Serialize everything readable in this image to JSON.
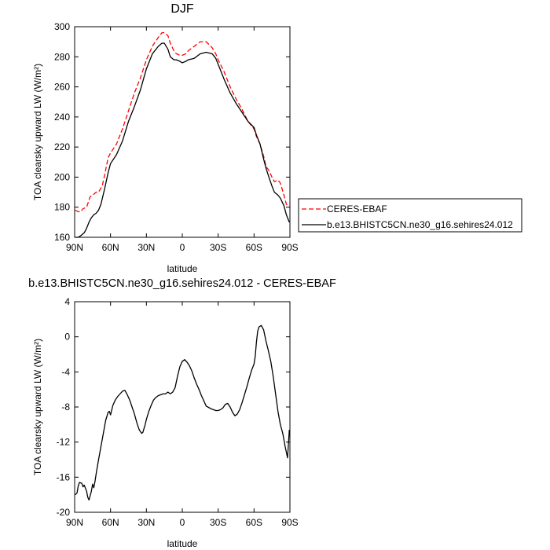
{
  "chart_data": [
    {
      "type": "line",
      "title": "DJF",
      "xlabel": "latitude",
      "ylabel": "TOA clearsky upward LW (W/m²)",
      "xlim": [
        -90,
        90
      ],
      "ylim": [
        160,
        300
      ],
      "x_ticks": [
        -90,
        -60,
        -30,
        0,
        30,
        60,
        90
      ],
      "x_tick_labels": [
        "90N",
        "60N",
        "30N",
        "0",
        "30S",
        "60S",
        "90S"
      ],
      "y_ticks": [
        160,
        180,
        200,
        220,
        240,
        260,
        280,
        300
      ],
      "y_tick_labels": [
        "160",
        "180",
        "200",
        "220",
        "240",
        "260",
        "280",
        "300"
      ],
      "series": [
        {
          "name": "CERES-EBAF",
          "color": "#ff0000",
          "dash": "dashed",
          "x": [
            -89.5,
            -87,
            -85,
            -83,
            -80,
            -77,
            -75,
            -72,
            -70,
            -67,
            -65,
            -62,
            -60,
            -55,
            -50,
            -45,
            -40,
            -35,
            -30,
            -25,
            -20,
            -17,
            -15,
            -12,
            -10,
            -7,
            -5,
            -2,
            0,
            3,
            5,
            10,
            15,
            20,
            25,
            28,
            30,
            35,
            40,
            45,
            50,
            55,
            60,
            62,
            65,
            68,
            70,
            72,
            75,
            77,
            80,
            82,
            85,
            87,
            89.5
          ],
          "y": [
            178,
            177,
            177,
            179,
            180,
            187,
            188,
            190,
            190,
            194,
            201,
            213,
            216,
            222,
            232,
            244,
            256,
            266,
            278,
            287,
            293,
            296,
            296,
            294,
            289,
            284,
            282,
            281,
            281,
            282,
            284,
            287,
            290,
            290,
            286,
            282,
            278,
            270,
            260,
            252,
            245,
            237,
            232,
            227,
            222,
            214,
            207,
            205,
            200,
            197,
            198,
            196,
            188,
            182,
            180
          ]
        },
        {
          "name": "b.e13.BHISTC5CN.ne30_g16.sehires24.012",
          "color": "#000000",
          "dash": "solid",
          "x": [
            -89.5,
            -87,
            -85,
            -82,
            -80,
            -78,
            -76,
            -74,
            -72,
            -70,
            -68,
            -65,
            -62,
            -60,
            -55,
            -50,
            -45,
            -40,
            -35,
            -30,
            -25,
            -20,
            -17,
            -15,
            -12,
            -10,
            -7,
            -5,
            -2,
            0,
            3,
            5,
            10,
            15,
            20,
            25,
            28,
            30,
            35,
            40,
            45,
            50,
            55,
            60,
            62,
            65,
            68,
            70,
            72,
            75,
            77,
            80,
            82,
            85,
            87,
            89.5
          ],
          "y": [
            160,
            160,
            161,
            163,
            166,
            170,
            173,
            175,
            176,
            178,
            182,
            192,
            203,
            209,
            215,
            224,
            237,
            247,
            258,
            272,
            282,
            287,
            289,
            289,
            285,
            280,
            278,
            278,
            277,
            276,
            277,
            278,
            279,
            282,
            283,
            282,
            279,
            275,
            265,
            256,
            249,
            243,
            237,
            233,
            228,
            222,
            212,
            206,
            201,
            194,
            190,
            188,
            186,
            181,
            175,
            170
          ]
        }
      ],
      "legend": "right"
    },
    {
      "type": "line",
      "title": "b.e13.BHISTC5CN.ne30_g16.sehires24.012 - CERES-EBAF",
      "xlabel": "latitude",
      "ylabel": "TOA clearsky upward LW (W/m²)",
      "xlim": [
        -90,
        90
      ],
      "ylim": [
        -20,
        4
      ],
      "x_ticks": [
        -90,
        -60,
        -30,
        0,
        30,
        60,
        90
      ],
      "x_tick_labels": [
        "90N",
        "60N",
        "30N",
        "0",
        "30S",
        "60S",
        "90S"
      ],
      "y_ticks": [
        -20,
        -16,
        -12,
        -8,
        -4,
        0,
        4
      ],
      "y_tick_labels": [
        "-20",
        "-16",
        "-12",
        "-8",
        "-4",
        "0",
        "4"
      ],
      "series": [
        {
          "color": "#000000",
          "dash": "solid",
          "x": [
            -89.5,
            -88,
            -87,
            -86,
            -84,
            -83,
            -82,
            -80,
            -79,
            -78,
            -76,
            -75,
            -74,
            -73,
            -72,
            -70,
            -68,
            -66,
            -64,
            -62,
            -61,
            -60,
            -58,
            -56,
            -54,
            -52,
            -50,
            -48,
            -46,
            -44,
            -42,
            -40,
            -38,
            -36,
            -34,
            -33,
            -31,
            -30,
            -28,
            -26,
            -24,
            -22,
            -20,
            -18,
            -16,
            -14,
            -12,
            -10,
            -8,
            -6,
            -4,
            -2,
            0,
            2,
            4,
            6,
            8,
            10,
            12,
            14,
            16,
            18,
            20,
            24,
            26,
            28,
            30,
            32,
            34,
            36,
            38,
            40,
            42,
            44,
            46,
            48,
            50,
            52,
            54,
            56,
            58,
            60,
            61,
            62,
            63,
            64,
            65,
            66,
            68,
            70,
            72,
            74,
            76,
            78,
            80,
            82,
            84,
            86,
            88,
            89.5
          ],
          "y": [
            -18.0,
            -17.8,
            -17.0,
            -16.6,
            -16.7,
            -17.1,
            -16.9,
            -17.6,
            -18.3,
            -18.6,
            -17.6,
            -16.8,
            -17.2,
            -16.5,
            -15.6,
            -14.0,
            -12.5,
            -11.0,
            -9.5,
            -8.6,
            -8.5,
            -8.9,
            -7.8,
            -7.2,
            -6.8,
            -6.5,
            -6.2,
            -6.1,
            -6.6,
            -7.2,
            -8.0,
            -8.8,
            -9.8,
            -10.6,
            -11.0,
            -10.9,
            -10.0,
            -9.4,
            -8.5,
            -7.8,
            -7.2,
            -6.9,
            -6.7,
            -6.6,
            -6.5,
            -6.5,
            -6.3,
            -6.5,
            -6.3,
            -5.8,
            -4.5,
            -3.4,
            -2.8,
            -2.6,
            -2.9,
            -3.3,
            -3.9,
            -4.7,
            -5.4,
            -6.0,
            -6.7,
            -7.3,
            -7.9,
            -8.2,
            -8.3,
            -8.4,
            -8.4,
            -8.3,
            -8.1,
            -7.7,
            -7.6,
            -8.0,
            -8.6,
            -9.0,
            -8.8,
            -8.3,
            -7.5,
            -6.6,
            -5.7,
            -4.7,
            -3.8,
            -3.1,
            -2.2,
            -0.6,
            0.6,
            1.1,
            1.2,
            1.3,
            0.8,
            -0.5,
            -1.6,
            -2.8,
            -4.5,
            -6.5,
            -8.5,
            -10.0,
            -11.0,
            -12.5,
            -13.8,
            -10.6
          ]
        }
      ]
    }
  ]
}
